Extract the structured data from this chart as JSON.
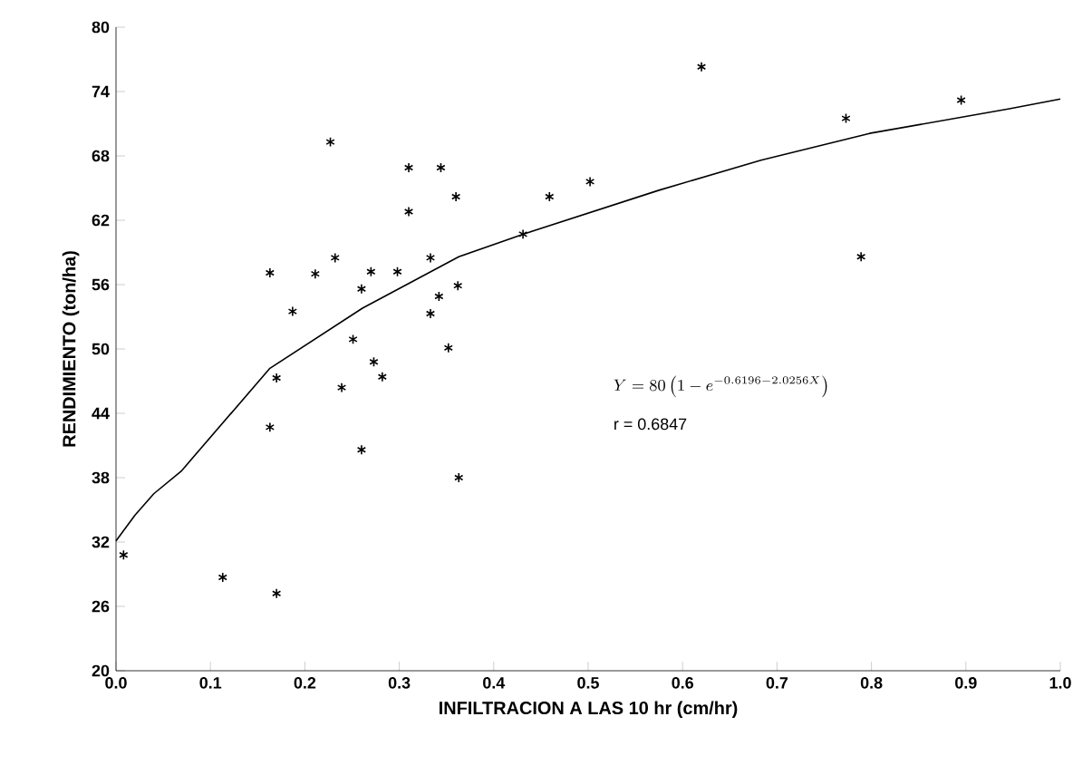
{
  "chart_data": {
    "type": "scatter",
    "xlabel": "INFILTRACION A LAS 10 hr (cm/hr)",
    "ylabel": "RENDIMIENTO (ton/ha)",
    "xlim": [
      0,
      1
    ],
    "ylim": [
      20,
      80
    ],
    "xticks": [
      {
        "value": 0,
        "label": "0.0"
      },
      {
        "value": 0.1,
        "label": "0.1"
      },
      {
        "value": 0.2,
        "label": "0.2"
      },
      {
        "value": 0.3,
        "label": "0.3"
      },
      {
        "value": 0.4,
        "label": "0.4"
      },
      {
        "value": 0.5,
        "label": "0.5"
      },
      {
        "value": 0.6,
        "label": "0.6"
      },
      {
        "value": 0.7,
        "label": "0.7"
      },
      {
        "value": 0.8,
        "label": "0.8"
      },
      {
        "value": 0.9,
        "label": "0.9"
      },
      {
        "value": 1,
        "label": "1.0"
      }
    ],
    "yticks": [
      20,
      26,
      32,
      38,
      44,
      50,
      56,
      62,
      68,
      74,
      80
    ],
    "marker": "cross",
    "grid": false,
    "annotations": [
      "Y = 80\\left(1-e^{-0.6196-2.0256X}\\right)",
      "r = 0.6847"
    ],
    "series": [
      {
        "color": "#000000",
        "x": [
          0.008,
          0.113,
          0.17,
          0.163,
          0.163,
          0.17,
          0.187,
          0.211,
          0.227,
          0.232,
          0.239,
          0.251,
          0.26,
          0.26,
          0.27,
          0.273,
          0.282,
          0.298,
          0.31,
          0.31,
          0.333,
          0.333,
          0.342,
          0.344,
          0.352,
          0.36,
          0.362,
          0.363,
          0.431,
          0.459,
          0.502,
          0.62,
          0.773,
          0.789,
          0.895
        ],
        "values": [
          30.8,
          28.7,
          27.2,
          42.7,
          57.1,
          47.3,
          53.5,
          57.0,
          69.3,
          58.5,
          46.4,
          50.9,
          55.6,
          40.6,
          57.2,
          48.8,
          47.4,
          57.2,
          62.8,
          66.9,
          58.5,
          53.3,
          54.9,
          66.9,
          50.1,
          64.2,
          55.9,
          38.0,
          60.7,
          64.2,
          65.6,
          76.3,
          71.5,
          58.6,
          73.2
        ]
      },
      {
        "type": "line",
        "color": "#000000",
        "marker": "none",
        "line_style": "solid",
        "x": [
          0,
          0.02,
          0.04,
          0.069,
          0.163,
          0.261,
          0.363,
          0.431,
          0.575,
          0.683,
          0.798,
          0.946,
          1.0
        ],
        "values": [
          32.1,
          34.5,
          36.5,
          38.6,
          48.2,
          53.8,
          58.6,
          60.7,
          64.8,
          67.6,
          70.1,
          72.4,
          73.3
        ]
      }
    ]
  }
}
